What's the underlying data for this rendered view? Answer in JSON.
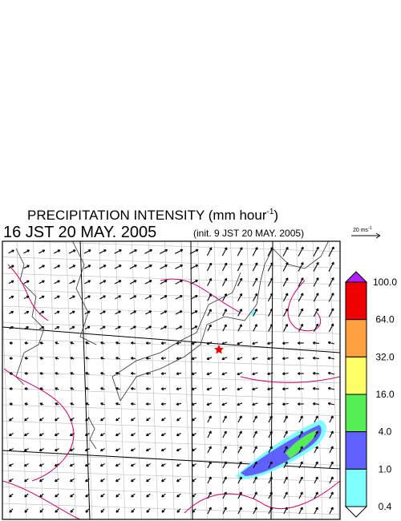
{
  "header": {
    "title": "PRECIPITATION INTENSITY (mm hour",
    "title_sup": "-1",
    "title_end": ")",
    "valid_time": "16 JST 20 MAY. 2005",
    "init_time": "(init. 9 JST 20 MAY. 2005)"
  },
  "wind_scale": {
    "label": "20 ms",
    "sup": "-1"
  },
  "colorbar": {
    "levels": [
      {
        "value": 100,
        "label": "100.0"
      },
      {
        "value": 64,
        "label": "64.0"
      },
      {
        "value": 32,
        "label": "32.0"
      },
      {
        "value": 16,
        "label": "16.0"
      },
      {
        "value": 4,
        "label": "4.0"
      },
      {
        "value": 1,
        "label": "1.0"
      },
      {
        "value": 0.4,
        "label": "0.4"
      }
    ],
    "colors": [
      "#ee0000",
      "#ffa040",
      "#ffff66",
      "#55ee55",
      "#6060ff",
      "#80ffff"
    ],
    "over_color": "#b020ff",
    "under_color": "#ffffff"
  }
}
